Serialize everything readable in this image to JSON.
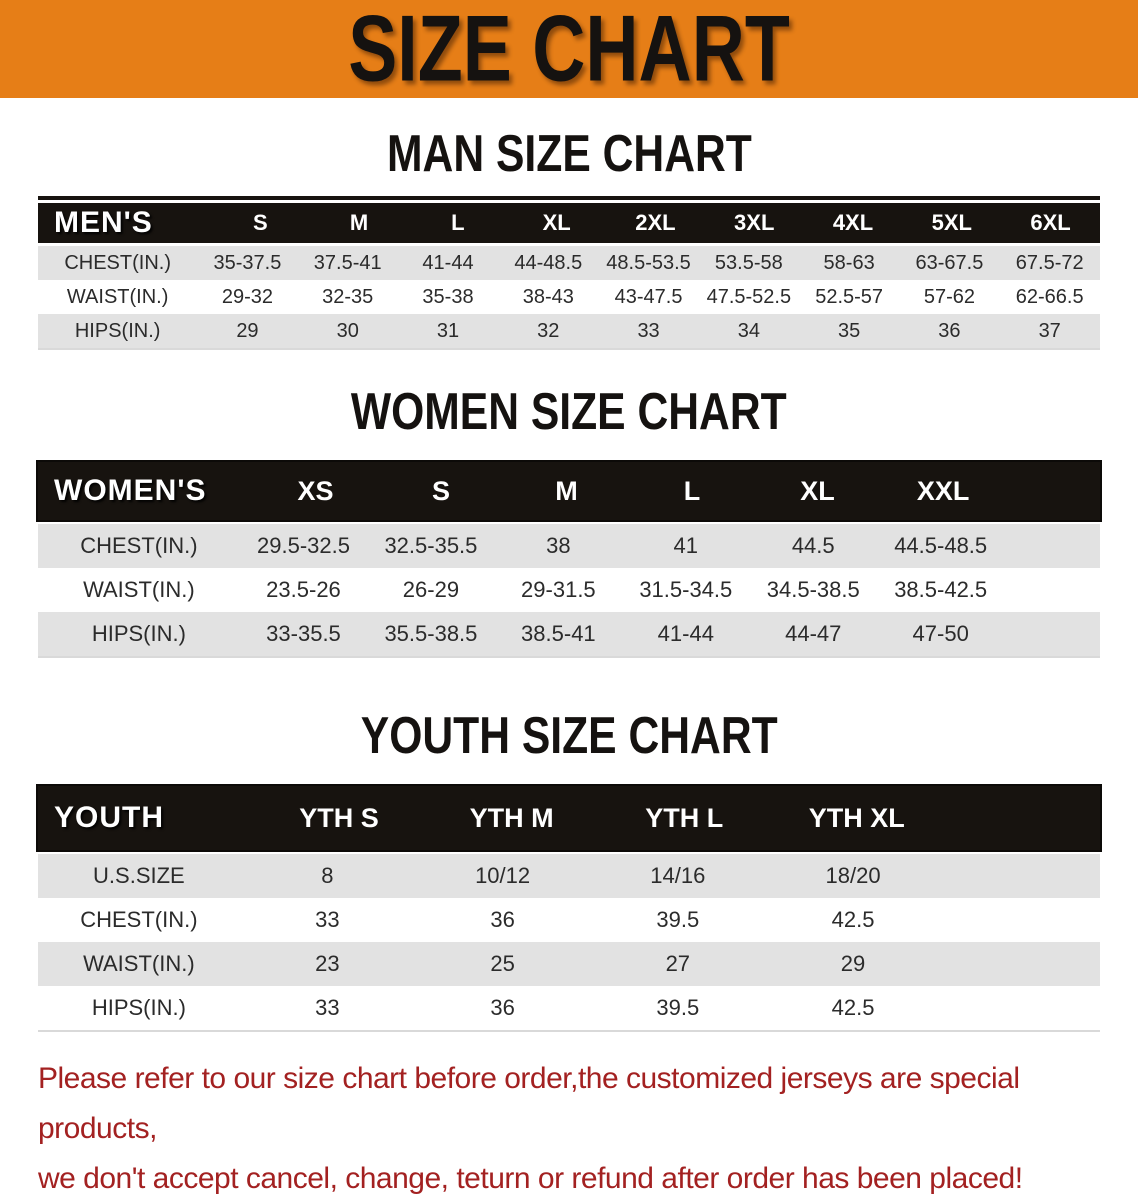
{
  "banner": {
    "title": "SIZE CHART"
  },
  "colors": {
    "banner_bg": "#e67e17",
    "table_header_bg": "#17130f",
    "row_stripe": "#e2e2e2",
    "disclaimer_red": "#a32121"
  },
  "men": {
    "heading": "MAN SIZE CHART",
    "label": "MEN'S",
    "sizes": [
      "S",
      "M",
      "L",
      "XL",
      "2XL",
      "3XL",
      "4XL",
      "5XL",
      "6XL"
    ],
    "rows": [
      {
        "label": "CHEST(IN.)",
        "values": [
          "35-37.5",
          "37.5-41",
          "41-44",
          "44-48.5",
          "48.5-53.5",
          "53.5-58",
          "58-63",
          "63-67.5",
          "67.5-72"
        ]
      },
      {
        "label": "WAIST(IN.)",
        "values": [
          "29-32",
          "32-35",
          "35-38",
          "38-43",
          "43-47.5",
          "47.5-52.5",
          "52.5-57",
          "57-62",
          "62-66.5"
        ]
      },
      {
        "label": "HIPS(IN.)",
        "values": [
          "29",
          "30",
          "31",
          "32",
          "33",
          "34",
          "35",
          "36",
          "37"
        ]
      }
    ]
  },
  "women": {
    "heading": "WOMEN SIZE CHART",
    "label": "WOMEN'S",
    "sizes": [
      "XS",
      "S",
      "M",
      "L",
      "XL",
      "XXL"
    ],
    "rows": [
      {
        "label": "CHEST(IN.)",
        "values": [
          "29.5-32.5",
          "32.5-35.5",
          "38",
          "41",
          "44.5",
          "44.5-48.5"
        ]
      },
      {
        "label": "WAIST(IN.)",
        "values": [
          "23.5-26",
          "26-29",
          "29-31.5",
          "31.5-34.5",
          "34.5-38.5",
          "38.5-42.5"
        ]
      },
      {
        "label": "HIPS(IN.)",
        "values": [
          "33-35.5",
          "35.5-38.5",
          "38.5-41",
          "41-44",
          "44-47",
          "47-50"
        ]
      }
    ]
  },
  "youth": {
    "heading": "YOUTH SIZE CHART",
    "label": "YOUTH",
    "sizes": [
      "YTH S",
      "YTH M",
      "YTH L",
      "YTH XL"
    ],
    "rows": [
      {
        "label": "U.S.SIZE",
        "values": [
          "8",
          "10/12",
          "14/16",
          "18/20"
        ]
      },
      {
        "label": "CHEST(IN.)",
        "values": [
          "33",
          "36",
          "39.5",
          "42.5"
        ]
      },
      {
        "label": "WAIST(IN.)",
        "values": [
          "23",
          "25",
          "27",
          "29"
        ]
      },
      {
        "label": "HIPS(IN.)",
        "values": [
          "33",
          "36",
          "39.5",
          "42.5"
        ]
      }
    ]
  },
  "disclaimer": {
    "line1": "Please refer to our size chart before order,the customized jerseys are special products,",
    "line2": "we don't accept cancel, change, teturn or refund after order has been placed!"
  }
}
